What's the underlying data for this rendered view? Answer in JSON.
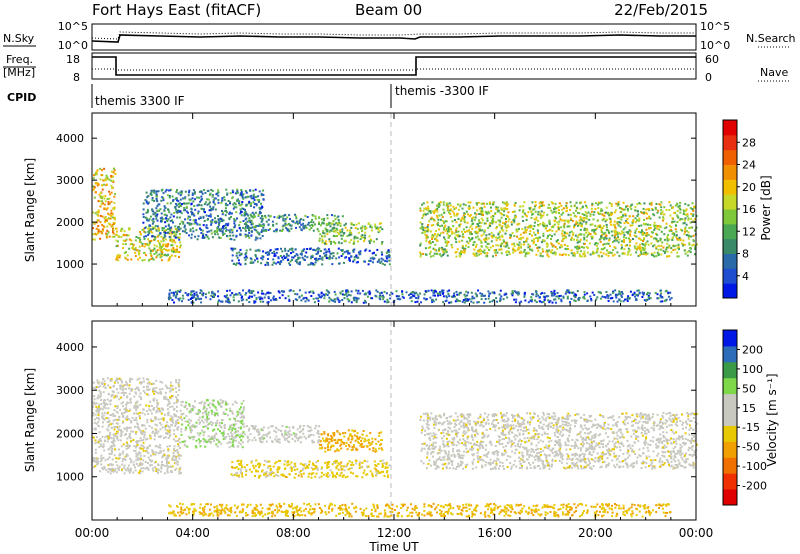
{
  "header": {
    "station": "Fort Hays East (fitACF)",
    "beam": "Beam 00",
    "date": "22/Feb/2015"
  },
  "noise_panel": {
    "left_label": "N.Sky",
    "right_label": "N.Search",
    "left_ticks": [
      "10^5",
      "10^0"
    ],
    "right_ticks": [
      "10^5",
      "10^0"
    ]
  },
  "freq_panel": {
    "left_label_top": "Freq.",
    "left_label_bottom": "[MHz]",
    "right_label": "Nave",
    "left_ticks": [
      "18",
      "8"
    ],
    "right_ticks": [
      "60",
      "0"
    ]
  },
  "cpid": {
    "label": "CPID",
    "segments": [
      {
        "label": "themis 3300 IF",
        "start_hour": 0
      },
      {
        "label": "themis -3300 IF",
        "start_hour": 12
      }
    ]
  },
  "colors": {
    "power_scale": [
      "#0018e6",
      "#1f4fd0",
      "#2a6aa8",
      "#3a8a6a",
      "#4aa852",
      "#7ec83a",
      "#c8d828",
      "#f0c000",
      "#f09000",
      "#f06000",
      "#e83010",
      "#e00000"
    ],
    "velocity_scale": [
      "#e00000",
      "#f03000",
      "#f07000",
      "#f0a000",
      "#e8c800",
      "#c8c8c0",
      "#c8c8c0",
      "#7ed84a",
      "#3a9a48",
      "#2d6cb8",
      "#0018e6"
    ],
    "dashed_line": "#bbbbbb"
  },
  "chart_data": [
    {
      "type": "heatmap",
      "name": "power",
      "ylabel": "Slant Range [km]",
      "ylim": [
        0,
        4600
      ],
      "yticks": [
        1000,
        2000,
        3000,
        4000
      ],
      "xlim": [
        0,
        24
      ],
      "xticks": [
        "00:00",
        "04:00",
        "08:00",
        "12:00",
        "16:00",
        "20:00",
        "00:00"
      ],
      "colorbar": {
        "label": "Power [dB]",
        "range": [
          0,
          32
        ],
        "ticks": [
          4,
          8,
          12,
          16,
          20,
          24,
          28
        ]
      },
      "regions": [
        {
          "t": [
            0.0,
            0.9
          ],
          "range": [
            1600,
            3300
          ],
          "value": 20
        },
        {
          "t": [
            0.9,
            3.5
          ],
          "range": [
            1100,
            1900
          ],
          "value": 18
        },
        {
          "t": [
            2.0,
            6.8
          ],
          "range": [
            1600,
            2800
          ],
          "value": 8
        },
        {
          "t": [
            6.0,
            10.0
          ],
          "range": [
            1800,
            2200
          ],
          "value": 10
        },
        {
          "t": [
            9.0,
            11.5
          ],
          "range": [
            1500,
            2000
          ],
          "value": 14
        },
        {
          "t": [
            5.5,
            11.8
          ],
          "range": [
            1000,
            1400
          ],
          "value": 6
        },
        {
          "t": [
            13.0,
            24.0
          ],
          "range": [
            1200,
            2500
          ],
          "value": 16
        },
        {
          "t": [
            3.0,
            23.0
          ],
          "range": [
            100,
            400
          ],
          "value": 6
        }
      ]
    },
    {
      "type": "heatmap",
      "name": "velocity",
      "ylabel": "Slant Range [km]",
      "ylim": [
        0,
        4600
      ],
      "yticks": [
        1000,
        2000,
        3000,
        4000
      ],
      "xlim": [
        0,
        24
      ],
      "xticks": [
        "00:00",
        "04:00",
        "08:00",
        "12:00",
        "16:00",
        "20:00",
        "00:00"
      ],
      "xlabel": "Time UT",
      "colorbar": {
        "label": "Velocity [m s⁻¹]",
        "range": [
          -250,
          250
        ],
        "ticks": [
          200,
          100,
          50,
          15,
          -15,
          -50,
          -100,
          -200
        ]
      },
      "regions": [
        {
          "t": [
            0.0,
            3.5
          ],
          "range": [
            1100,
            3300
          ],
          "value": 0
        },
        {
          "t": [
            3.5,
            6.0
          ],
          "range": [
            1700,
            2800
          ],
          "value": 60
        },
        {
          "t": [
            6.0,
            9.0
          ],
          "range": [
            1800,
            2200
          ],
          "value": 40
        },
        {
          "t": [
            9.0,
            11.5
          ],
          "range": [
            1600,
            2100
          ],
          "value": -70
        },
        {
          "t": [
            5.5,
            11.8
          ],
          "range": [
            1000,
            1400
          ],
          "value": -40
        },
        {
          "t": [
            13.0,
            24.0
          ],
          "range": [
            1200,
            2500
          ],
          "value": 0
        },
        {
          "t": [
            3.0,
            23.0
          ],
          "range": [
            100,
            400
          ],
          "value": -60
        }
      ]
    }
  ]
}
